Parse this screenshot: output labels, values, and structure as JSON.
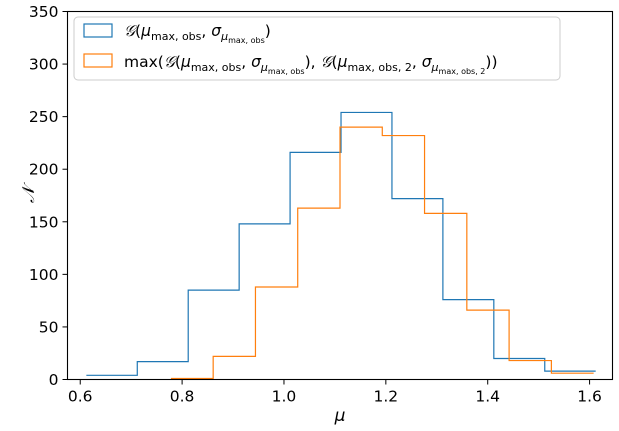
{
  "chart_data": {
    "type": "histogram",
    "xlabel": "μ",
    "ylabel": "𝒩",
    "xlim": [
      0.575,
      1.645
    ],
    "ylim": [
      0,
      350
    ],
    "xticks": [
      0.6,
      0.8,
      1.0,
      1.2,
      1.4,
      1.6
    ],
    "xtick_labels": [
      "0.6",
      "0.8",
      "1.0",
      "1.2",
      "1.4",
      "1.6"
    ],
    "yticks": [
      0,
      50,
      100,
      150,
      200,
      250,
      300,
      350
    ],
    "ytick_labels": [
      "0",
      "50",
      "100",
      "150",
      "200",
      "250",
      "300",
      "350"
    ],
    "grid": false,
    "legend_position": "top-left",
    "series": [
      {
        "name": "𝒢(μmax, obs, σμmax, obs)",
        "color": "#1f77b4",
        "edges": [
          0.612,
          0.712,
          0.812,
          0.912,
          1.012,
          1.112,
          1.212,
          1.312,
          1.412,
          1.512,
          1.612
        ],
        "counts": [
          4,
          17,
          85,
          148,
          216,
          254,
          172,
          76,
          20,
          8
        ]
      },
      {
        "name": "max(𝒢(μmax, obs, σμmax, obs), 𝒢(μmax, obs, 2, σμmax, obs, 2))",
        "color": "#ff7f0e",
        "edges": [
          0.778,
          0.861,
          0.944,
          1.027,
          1.11,
          1.193,
          1.276,
          1.359,
          1.442,
          1.525,
          1.608
        ],
        "counts": [
          1,
          22,
          88,
          163,
          240,
          232,
          158,
          66,
          18,
          6
        ]
      }
    ]
  }
}
